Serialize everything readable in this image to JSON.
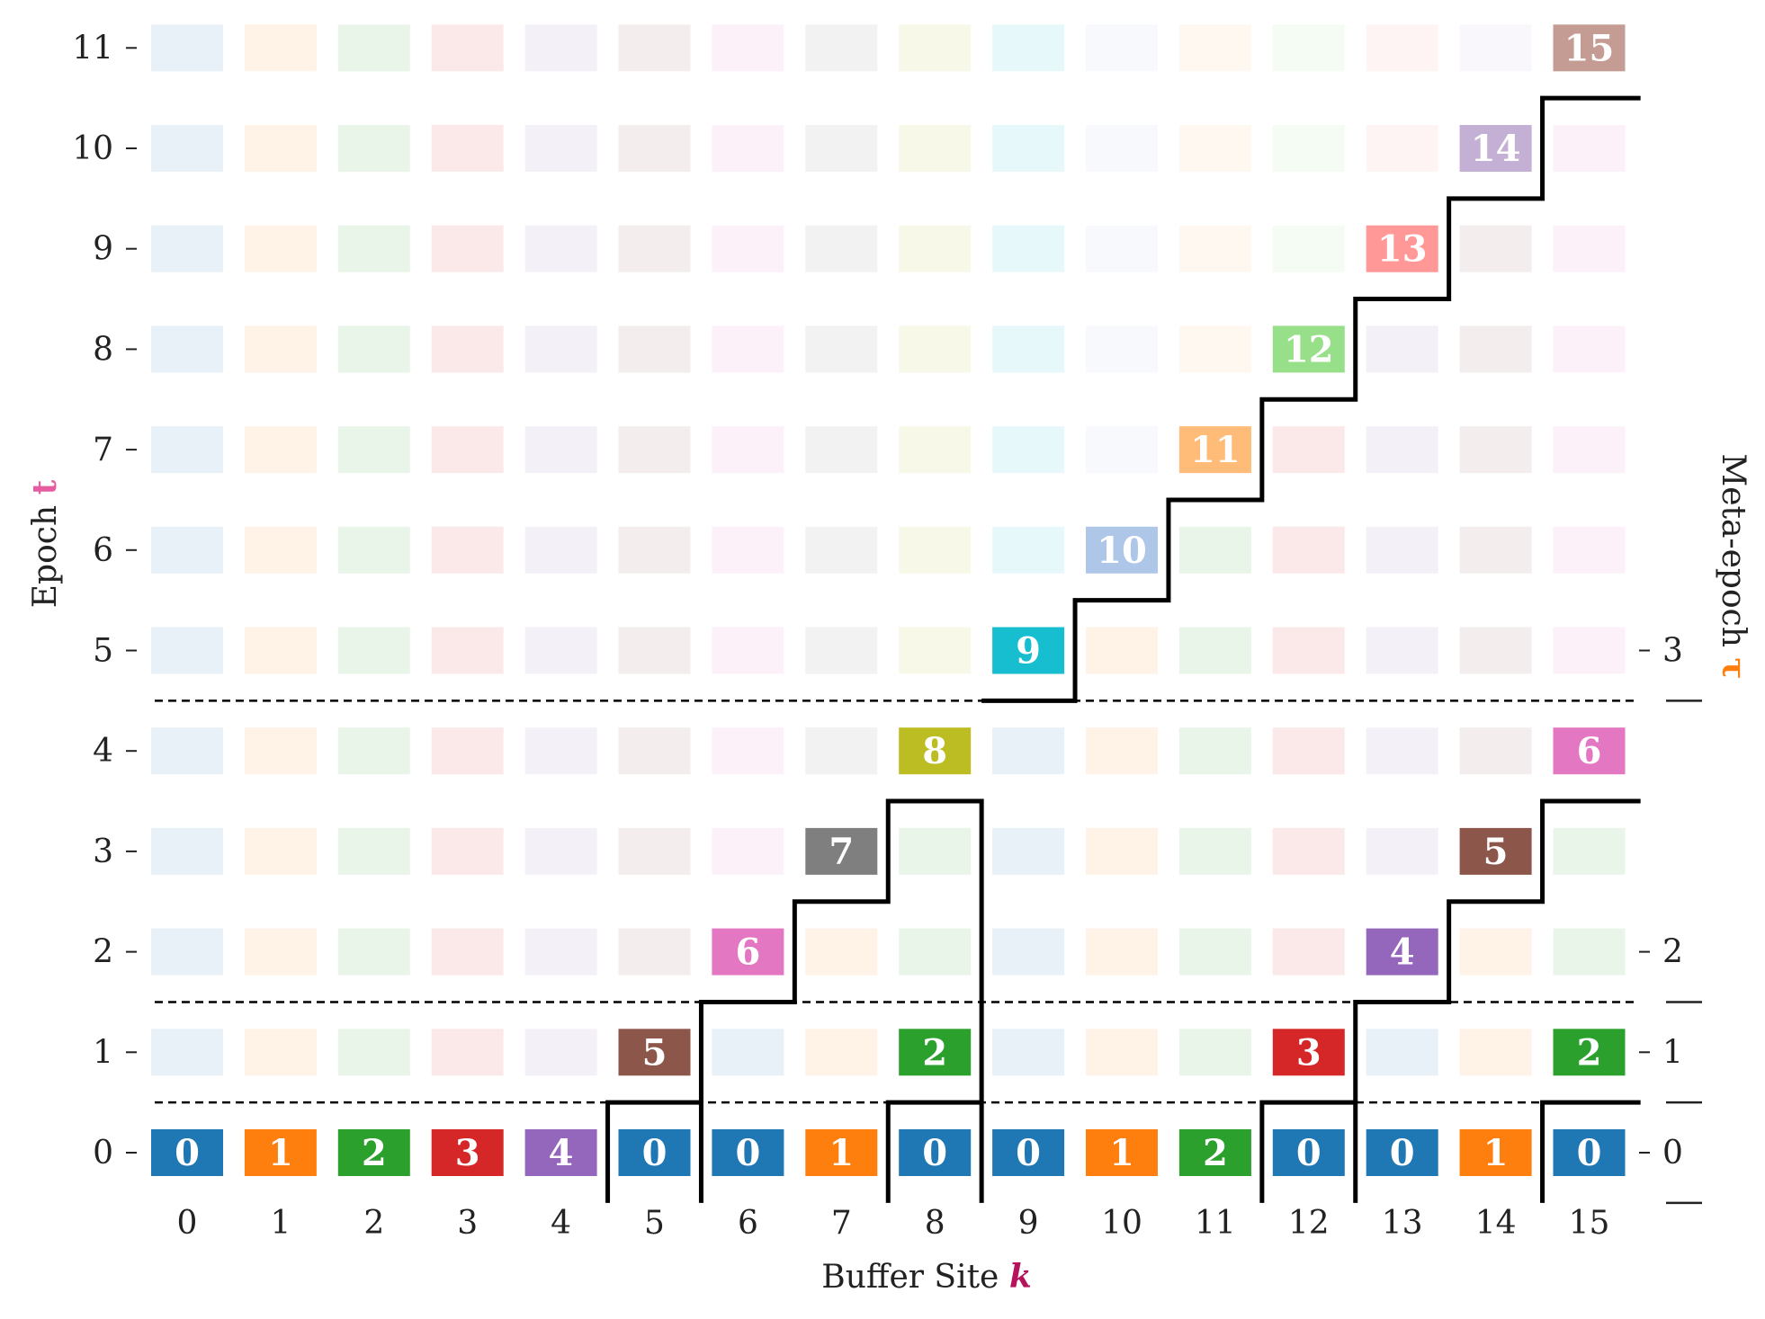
{
  "diagram": {
    "x_axis": {
      "title": "Buffer Site",
      "symbol": "k",
      "symbol_color": "#b5145a",
      "ticks": [
        "0",
        "1",
        "2",
        "3",
        "4",
        "5",
        "6",
        "7",
        "8",
        "9",
        "10",
        "11",
        "12",
        "13",
        "14",
        "15"
      ]
    },
    "y_axis": {
      "title": "Epoch",
      "symbol": "t",
      "symbol_color": "#e75ba1",
      "ticks": [
        "0",
        "1",
        "2",
        "3",
        "4",
        "5",
        "6",
        "7",
        "8",
        "9",
        "10",
        "11"
      ]
    },
    "right_axis": {
      "title": "Meta-epoch",
      "symbol": "τ",
      "symbol_color": "#ff7f0e",
      "ticks": [
        {
          "label": "0",
          "epoch": 0
        },
        {
          "label": "1",
          "epoch": 1
        },
        {
          "label": "2",
          "epoch": 2
        },
        {
          "label": "3",
          "epoch": 5
        }
      ],
      "separators": [
        -0.5,
        0.5,
        1.5,
        4.5
      ]
    },
    "meta_epoch_boundaries": [
      0.5,
      1.5,
      4.5
    ],
    "palette": [
      "#1f77b4",
      "#ff7f0e",
      "#2ca02c",
      "#d62728",
      "#9467bd",
      "#8c564b",
      "#e377c2",
      "#7f7f7f",
      "#bcbd22",
      "#17becf",
      "#aec7e8",
      "#ffbb78",
      "#98df8a",
      "#ff9896",
      "#c5b0d5",
      "#c49c94"
    ],
    "bold_cells": [
      {
        "t": 0,
        "k": 0,
        "v": 0
      },
      {
        "t": 0,
        "k": 1,
        "v": 1
      },
      {
        "t": 0,
        "k": 2,
        "v": 2
      },
      {
        "t": 0,
        "k": 3,
        "v": 3
      },
      {
        "t": 0,
        "k": 4,
        "v": 4
      },
      {
        "t": 0,
        "k": 5,
        "v": 0
      },
      {
        "t": 0,
        "k": 6,
        "v": 0
      },
      {
        "t": 0,
        "k": 7,
        "v": 1
      },
      {
        "t": 0,
        "k": 8,
        "v": 0
      },
      {
        "t": 0,
        "k": 9,
        "v": 0
      },
      {
        "t": 0,
        "k": 10,
        "v": 1
      },
      {
        "t": 0,
        "k": 11,
        "v": 2
      },
      {
        "t": 0,
        "k": 12,
        "v": 0
      },
      {
        "t": 0,
        "k": 13,
        "v": 0
      },
      {
        "t": 0,
        "k": 14,
        "v": 1
      },
      {
        "t": 0,
        "k": 15,
        "v": 0
      },
      {
        "t": 1,
        "k": 5,
        "v": 5
      },
      {
        "t": 1,
        "k": 8,
        "v": 2
      },
      {
        "t": 1,
        "k": 12,
        "v": 3
      },
      {
        "t": 1,
        "k": 15,
        "v": 2
      },
      {
        "t": 2,
        "k": 6,
        "v": 6
      },
      {
        "t": 2,
        "k": 13,
        "v": 4
      },
      {
        "t": 3,
        "k": 7,
        "v": 7
      },
      {
        "t": 3,
        "k": 14,
        "v": 5
      },
      {
        "t": 4,
        "k": 8,
        "v": 8
      },
      {
        "t": 4,
        "k": 15,
        "v": 6
      },
      {
        "t": 5,
        "k": 9,
        "v": 9
      },
      {
        "t": 6,
        "k": 10,
        "v": 10
      },
      {
        "t": 7,
        "k": 11,
        "v": 11
      },
      {
        "t": 8,
        "k": 12,
        "v": 12
      },
      {
        "t": 9,
        "k": 13,
        "v": 13
      },
      {
        "t": 10,
        "k": 14,
        "v": 14
      },
      {
        "t": 11,
        "k": 15,
        "v": 15
      }
    ],
    "faded_rows": [
      {
        "t": 1,
        "cells": [
          {
            "k": 0,
            "c": 0
          },
          {
            "k": 1,
            "c": 1
          },
          {
            "k": 2,
            "c": 2
          },
          {
            "k": 3,
            "c": 3
          },
          {
            "k": 4,
            "c": 4
          },
          {
            "k": 6,
            "c": 0
          },
          {
            "k": 7,
            "c": 1
          },
          {
            "k": 9,
            "c": 0
          },
          {
            "k": 10,
            "c": 1
          },
          {
            "k": 11,
            "c": 2
          },
          {
            "k": 13,
            "c": 0
          },
          {
            "k": 14,
            "c": 1
          }
        ]
      },
      {
        "t": 2,
        "cells": [
          {
            "k": 0,
            "c": 0
          },
          {
            "k": 1,
            "c": 1
          },
          {
            "k": 2,
            "c": 2
          },
          {
            "k": 3,
            "c": 3
          },
          {
            "k": 4,
            "c": 4
          },
          {
            "k": 5,
            "c": 5
          },
          {
            "k": 7,
            "c": 1
          },
          {
            "k": 8,
            "c": 2
          },
          {
            "k": 9,
            "c": 0
          },
          {
            "k": 10,
            "c": 1
          },
          {
            "k": 11,
            "c": 2
          },
          {
            "k": 12,
            "c": 3
          },
          {
            "k": 14,
            "c": 1
          },
          {
            "k": 15,
            "c": 2
          }
        ]
      },
      {
        "t": 3,
        "cells": [
          {
            "k": 0,
            "c": 0
          },
          {
            "k": 1,
            "c": 1
          },
          {
            "k": 2,
            "c": 2
          },
          {
            "k": 3,
            "c": 3
          },
          {
            "k": 4,
            "c": 4
          },
          {
            "k": 5,
            "c": 5
          },
          {
            "k": 6,
            "c": 6
          },
          {
            "k": 8,
            "c": 2
          },
          {
            "k": 9,
            "c": 0
          },
          {
            "k": 10,
            "c": 1
          },
          {
            "k": 11,
            "c": 2
          },
          {
            "k": 12,
            "c": 3
          },
          {
            "k": 13,
            "c": 4
          },
          {
            "k": 15,
            "c": 2
          }
        ]
      },
      {
        "t": 4,
        "cells": [
          {
            "k": 0,
            "c": 0
          },
          {
            "k": 1,
            "c": 1
          },
          {
            "k": 2,
            "c": 2
          },
          {
            "k": 3,
            "c": 3
          },
          {
            "k": 4,
            "c": 4
          },
          {
            "k": 5,
            "c": 5
          },
          {
            "k": 6,
            "c": 6
          },
          {
            "k": 7,
            "c": 7
          },
          {
            "k": 9,
            "c": 0
          },
          {
            "k": 10,
            "c": 1
          },
          {
            "k": 11,
            "c": 2
          },
          {
            "k": 12,
            "c": 3
          },
          {
            "k": 13,
            "c": 4
          },
          {
            "k": 14,
            "c": 5
          }
        ]
      },
      {
        "t": 5,
        "cells": [
          {
            "k": 0,
            "c": 0
          },
          {
            "k": 1,
            "c": 1
          },
          {
            "k": 2,
            "c": 2
          },
          {
            "k": 3,
            "c": 3
          },
          {
            "k": 4,
            "c": 4
          },
          {
            "k": 5,
            "c": 5
          },
          {
            "k": 6,
            "c": 6
          },
          {
            "k": 7,
            "c": 7
          },
          {
            "k": 8,
            "c": 8
          },
          {
            "k": 10,
            "c": 1
          },
          {
            "k": 11,
            "c": 2
          },
          {
            "k": 12,
            "c": 3
          },
          {
            "k": 13,
            "c": 4
          },
          {
            "k": 14,
            "c": 5
          },
          {
            "k": 15,
            "c": 6
          }
        ]
      },
      {
        "t": 6,
        "cells": [
          {
            "k": 0,
            "c": 0
          },
          {
            "k": 1,
            "c": 1
          },
          {
            "k": 2,
            "c": 2
          },
          {
            "k": 3,
            "c": 3
          },
          {
            "k": 4,
            "c": 4
          },
          {
            "k": 5,
            "c": 5
          },
          {
            "k": 6,
            "c": 6
          },
          {
            "k": 7,
            "c": 7
          },
          {
            "k": 8,
            "c": 8
          },
          {
            "k": 9,
            "c": 9
          },
          {
            "k": 11,
            "c": 2
          },
          {
            "k": 12,
            "c": 3
          },
          {
            "k": 13,
            "c": 4
          },
          {
            "k": 14,
            "c": 5
          },
          {
            "k": 15,
            "c": 6
          }
        ]
      },
      {
        "t": 7,
        "cells": [
          {
            "k": 0,
            "c": 0
          },
          {
            "k": 1,
            "c": 1
          },
          {
            "k": 2,
            "c": 2
          },
          {
            "k": 3,
            "c": 3
          },
          {
            "k": 4,
            "c": 4
          },
          {
            "k": 5,
            "c": 5
          },
          {
            "k": 6,
            "c": 6
          },
          {
            "k": 7,
            "c": 7
          },
          {
            "k": 8,
            "c": 8
          },
          {
            "k": 9,
            "c": 9
          },
          {
            "k": 10,
            "c": 10
          },
          {
            "k": 12,
            "c": 3
          },
          {
            "k": 13,
            "c": 4
          },
          {
            "k": 14,
            "c": 5
          },
          {
            "k": 15,
            "c": 6
          }
        ]
      },
      {
        "t": 8,
        "cells": [
          {
            "k": 0,
            "c": 0
          },
          {
            "k": 1,
            "c": 1
          },
          {
            "k": 2,
            "c": 2
          },
          {
            "k": 3,
            "c": 3
          },
          {
            "k": 4,
            "c": 4
          },
          {
            "k": 5,
            "c": 5
          },
          {
            "k": 6,
            "c": 6
          },
          {
            "k": 7,
            "c": 7
          },
          {
            "k": 8,
            "c": 8
          },
          {
            "k": 9,
            "c": 9
          },
          {
            "k": 10,
            "c": 10
          },
          {
            "k": 11,
            "c": 11
          },
          {
            "k": 13,
            "c": 4
          },
          {
            "k": 14,
            "c": 5
          },
          {
            "k": 15,
            "c": 6
          }
        ]
      },
      {
        "t": 9,
        "cells": [
          {
            "k": 0,
            "c": 0
          },
          {
            "k": 1,
            "c": 1
          },
          {
            "k": 2,
            "c": 2
          },
          {
            "k": 3,
            "c": 3
          },
          {
            "k": 4,
            "c": 4
          },
          {
            "k": 5,
            "c": 5
          },
          {
            "k": 6,
            "c": 6
          },
          {
            "k": 7,
            "c": 7
          },
          {
            "k": 8,
            "c": 8
          },
          {
            "k": 9,
            "c": 9
          },
          {
            "k": 10,
            "c": 10
          },
          {
            "k": 11,
            "c": 11
          },
          {
            "k": 12,
            "c": 12
          },
          {
            "k": 14,
            "c": 5
          },
          {
            "k": 15,
            "c": 6
          }
        ]
      },
      {
        "t": 10,
        "cells": [
          {
            "k": 0,
            "c": 0
          },
          {
            "k": 1,
            "c": 1
          },
          {
            "k": 2,
            "c": 2
          },
          {
            "k": 3,
            "c": 3
          },
          {
            "k": 4,
            "c": 4
          },
          {
            "k": 5,
            "c": 5
          },
          {
            "k": 6,
            "c": 6
          },
          {
            "k": 7,
            "c": 7
          },
          {
            "k": 8,
            "c": 8
          },
          {
            "k": 9,
            "c": 9
          },
          {
            "k": 10,
            "c": 10
          },
          {
            "k": 11,
            "c": 11
          },
          {
            "k": 12,
            "c": 12
          },
          {
            "k": 13,
            "c": 13
          },
          {
            "k": 15,
            "c": 6
          }
        ]
      },
      {
        "t": 11,
        "cells": [
          {
            "k": 0,
            "c": 0
          },
          {
            "k": 1,
            "c": 1
          },
          {
            "k": 2,
            "c": 2
          },
          {
            "k": 3,
            "c": 3
          },
          {
            "k": 4,
            "c": 4
          },
          {
            "k": 5,
            "c": 5
          },
          {
            "k": 6,
            "c": 6
          },
          {
            "k": 7,
            "c": 7
          },
          {
            "k": 8,
            "c": 8
          },
          {
            "k": 9,
            "c": 9
          },
          {
            "k": 10,
            "c": 10
          },
          {
            "k": 11,
            "c": 11
          },
          {
            "k": 12,
            "c": 12
          },
          {
            "k": 13,
            "c": 13
          },
          {
            "k": 14,
            "c": 14
          }
        ]
      }
    ],
    "staircases": [
      [
        [
          5.5,
          -0.5
        ],
        [
          5.5,
          0.5
        ],
        [
          4.5,
          0.5
        ],
        [
          4.5,
          -0.5
        ]
      ],
      [
        [
          5.5,
          0.5
        ],
        [
          5.5,
          1.5
        ],
        [
          6.5,
          1.5
        ],
        [
          6.5,
          2.5
        ],
        [
          7.5,
          2.5
        ],
        [
          7.5,
          3.5
        ],
        [
          8.5,
          3.5
        ],
        [
          8.5,
          -0.5
        ]
      ],
      [
        [
          8.5,
          0.5
        ],
        [
          7.5,
          0.5
        ],
        [
          7.5,
          -0.5
        ]
      ],
      [
        [
          8.5,
          4.5
        ],
        [
          9.5,
          4.5
        ],
        [
          9.5,
          5.5
        ],
        [
          10.5,
          5.5
        ],
        [
          10.5,
          6.5
        ],
        [
          11.5,
          6.5
        ],
        [
          11.5,
          7.5
        ],
        [
          12.5,
          7.5
        ],
        [
          12.5,
          8.5
        ],
        [
          13.5,
          8.5
        ],
        [
          13.5,
          9.5
        ],
        [
          14.5,
          9.5
        ],
        [
          14.5,
          10.5
        ],
        [
          15.55,
          10.5
        ]
      ],
      [
        [
          11.5,
          -0.5
        ],
        [
          11.5,
          0.5
        ],
        [
          12.5,
          0.5
        ],
        [
          12.5,
          -0.5
        ]
      ],
      [
        [
          12.5,
          0.5
        ],
        [
          12.5,
          1.5
        ],
        [
          13.5,
          1.5
        ],
        [
          13.5,
          2.5
        ],
        [
          14.5,
          2.5
        ],
        [
          14.5,
          3.5
        ],
        [
          15.55,
          3.5
        ]
      ],
      [
        [
          14.5,
          -0.5
        ],
        [
          14.5,
          0.5
        ],
        [
          15.55,
          0.5
        ]
      ]
    ]
  }
}
